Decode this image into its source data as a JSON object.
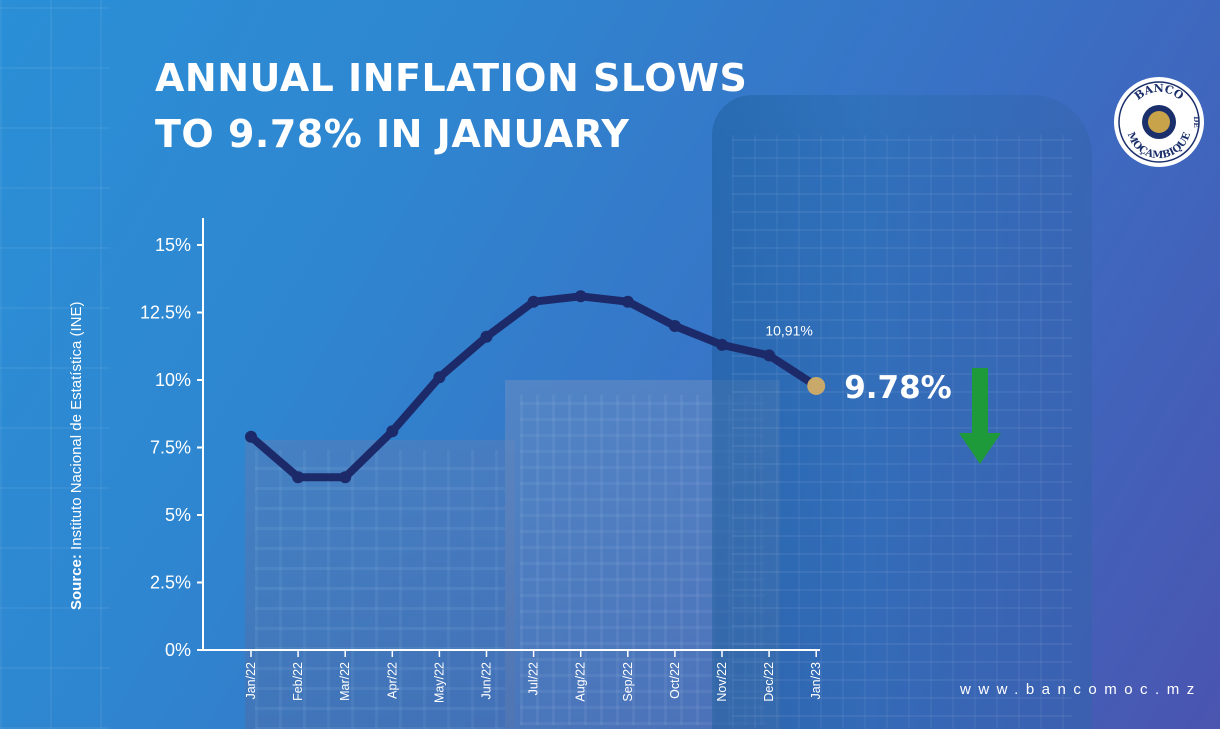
{
  "header": {
    "title_line1": "ANNUAL INFLATION SLOWS",
    "title_line2": "TO 9.78% IN JANUARY"
  },
  "source": {
    "label": "Source:",
    "text": "Instituto Nacional de Estatística (INE)"
  },
  "footer": {
    "website": "www.bancomoc.mz"
  },
  "logo": {
    "text_top": "BANCO",
    "text_bottom": "MOÇAMBIQUE",
    "text_de": "DE",
    "ring_color": "#1a2f6b",
    "gold_color": "#c9a34a"
  },
  "colors": {
    "line": "#1c2a6a",
    "last_point": "#c8a96a",
    "arrow": "#1f9a3a",
    "axis": "#ffffff"
  },
  "chart_data": {
    "type": "line",
    "title": "ANNUAL INFLATION SLOWS TO 9.78% IN JANUARY",
    "xlabel": "",
    "ylabel": "",
    "categories": [
      "Jan/22",
      "Feb/22",
      "Mar/22",
      "Apr/22",
      "May/22",
      "Jun/22",
      "Jul/22",
      "Aug/22",
      "Sep/22",
      "Oct/22",
      "Nov/22",
      "Dec/22",
      "Jan/23"
    ],
    "series": [
      {
        "name": "",
        "values": [
          7.9,
          6.4,
          6.4,
          8.1,
          10.1,
          11.6,
          12.9,
          13.1,
          12.9,
          12.0,
          11.3,
          10.91,
          9.78
        ]
      }
    ],
    "ylim": [
      0,
      15
    ],
    "yticks": [
      {
        "value": 0,
        "label": "0%"
      },
      {
        "value": 2.5,
        "label": "2.5%"
      },
      {
        "value": 5,
        "label": "5%"
      },
      {
        "value": 7.5,
        "label": "7.5%"
      },
      {
        "value": 10,
        "label": "10%"
      },
      {
        "value": 12.5,
        "label": "12.5%"
      },
      {
        "value": 15,
        "label": "15%"
      }
    ],
    "annotations": [
      {
        "category": "Dec/22",
        "label": "10,91%"
      },
      {
        "category": "Jan/23",
        "label": "9.78%"
      }
    ],
    "grid": false,
    "legend": "none"
  }
}
